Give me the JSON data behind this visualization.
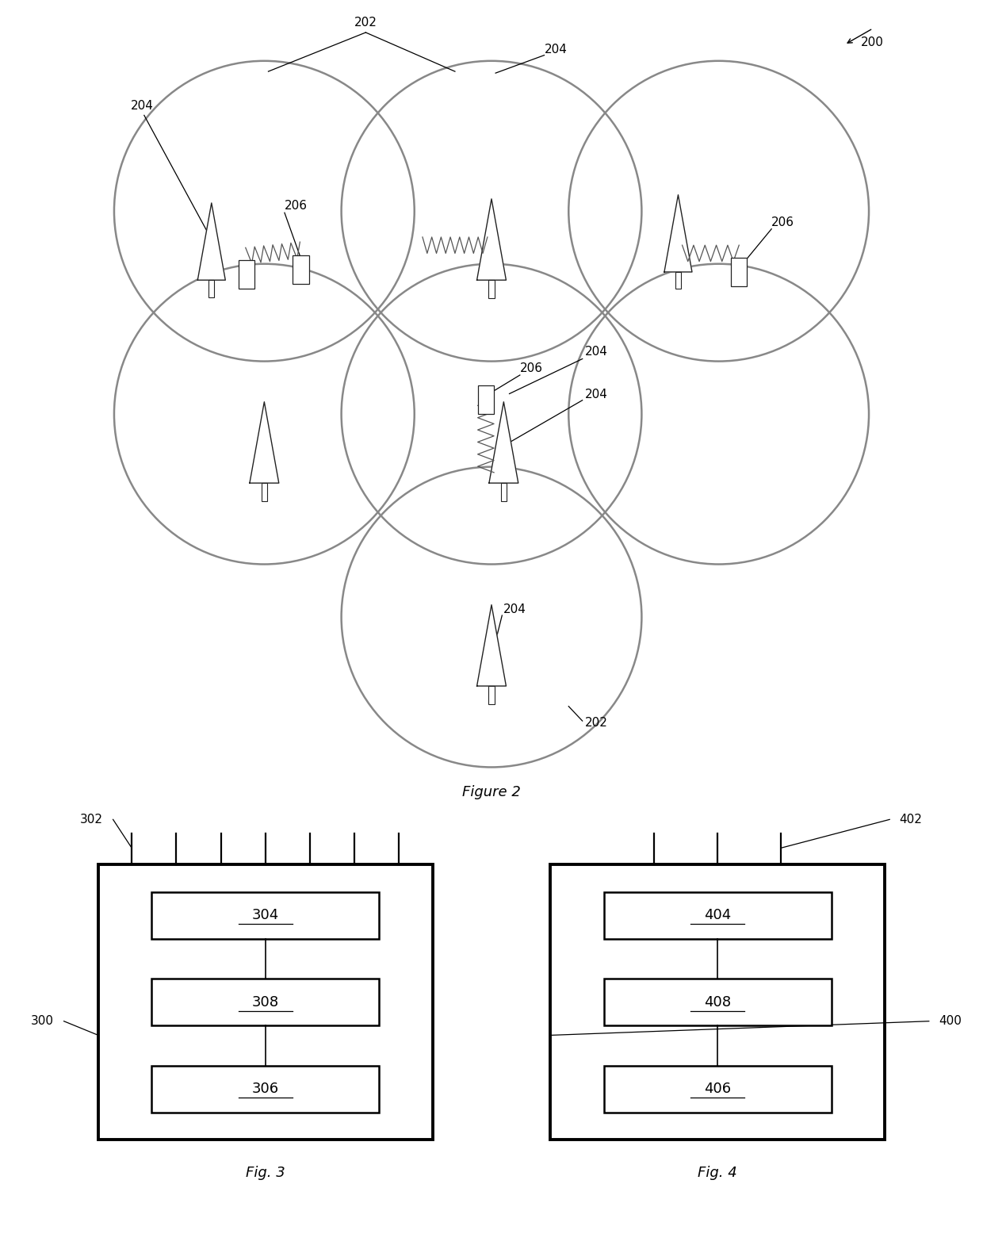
{
  "fig2_title": "Figure 2",
  "fig3_title": "Fig. 3",
  "fig4_title": "Fig. 4",
  "bg_color": "#ffffff",
  "circle_color": "#888888",
  "circle_lw": 1.8,
  "font_size": 11,
  "title_font_size": 13
}
